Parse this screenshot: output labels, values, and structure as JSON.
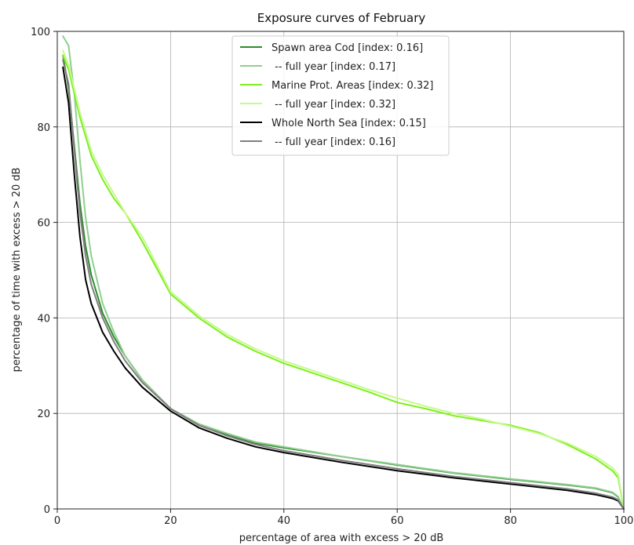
{
  "chart_data": {
    "type": "line",
    "title": "Exposure curves of February",
    "xlabel": "percentage of area with excess > 20 dB",
    "ylabel": "percentage of time with excess > 20 dB",
    "xlim": [
      0,
      100
    ],
    "ylim": [
      0,
      100
    ],
    "xticks": [
      "0",
      "20",
      "40",
      "60",
      "80",
      "100"
    ],
    "yticks": [
      "0",
      "20",
      "40",
      "60",
      "80",
      "100"
    ],
    "grid": true,
    "legend_position": "top-center",
    "series": [
      {
        "name": "Spawn area Cod [index: 0.16]",
        "color": "#2e8b2e",
        "x": [
          1,
          2,
          3,
          4,
          5,
          6,
          8,
          10,
          12,
          15,
          20,
          25,
          30,
          35,
          40,
          50,
          60,
          70,
          80,
          90,
          95,
          98,
          99,
          100
        ],
        "y": [
          95,
          88,
          76,
          64,
          55,
          49,
          41,
          36,
          32,
          27,
          21,
          17.5,
          15.5,
          13.8,
          12.8,
          11,
          9.2,
          7.5,
          6.2,
          5,
          4.3,
          3.4,
          2.5,
          0
        ]
      },
      {
        "name": " -- full year [index: 0.17]",
        "color": "#8fcf8f",
        "x": [
          1,
          2,
          3,
          4,
          5,
          6,
          8,
          10,
          12,
          15,
          20,
          25,
          30,
          35,
          40,
          50,
          60,
          70,
          80,
          90,
          95,
          98,
          99,
          100
        ],
        "y": [
          99,
          97,
          87,
          73,
          61,
          53,
          43,
          37,
          32,
          27,
          21,
          17.8,
          15.8,
          14,
          13,
          11,
          9.3,
          7.6,
          6.3,
          5.1,
          4.4,
          3.5,
          2.6,
          0
        ]
      },
      {
        "name": "Marine Prot. Areas [index: 0.32]",
        "color": "#7cf01a",
        "x": [
          1,
          2,
          3,
          4,
          5,
          6,
          8,
          10,
          12,
          15,
          20,
          25,
          30,
          35,
          40,
          45,
          50,
          55,
          60,
          65,
          70,
          75,
          80,
          85,
          90,
          95,
          98,
          99,
          100
        ],
        "y": [
          95,
          92,
          87,
          82,
          78,
          74,
          69,
          65,
          62,
          56,
          45,
          40,
          36,
          33,
          30.5,
          28.5,
          26.5,
          24.5,
          22.3,
          21,
          19.5,
          18.5,
          17.5,
          16,
          13.5,
          10.5,
          8,
          6.5,
          0
        ]
      },
      {
        "name": " -- full year [index: 0.32]",
        "color": "#c6f98e",
        "x": [
          1,
          2,
          3,
          4,
          5,
          6,
          8,
          10,
          12,
          15,
          20,
          25,
          30,
          35,
          40,
          45,
          50,
          55,
          60,
          65,
          70,
          75,
          80,
          85,
          90,
          95,
          98,
          99,
          100
        ],
        "y": [
          96,
          93,
          88,
          83,
          79,
          75,
          70,
          66,
          62,
          57,
          45.5,
          40.5,
          36.5,
          33.5,
          31,
          29,
          27,
          25,
          23.2,
          21.5,
          20,
          18.8,
          17.3,
          15.8,
          13.8,
          11,
          8.6,
          7.2,
          0
        ]
      },
      {
        "name": "Whole North Sea [index: 0.15]",
        "color": "#000000",
        "x": [
          1,
          2,
          3,
          4,
          5,
          6,
          8,
          10,
          12,
          15,
          20,
          25,
          30,
          35,
          40,
          50,
          60,
          70,
          80,
          90,
          95,
          98,
          99,
          100
        ],
        "y": [
          92.5,
          85,
          70,
          57,
          48,
          43,
          37,
          33,
          29.5,
          25.5,
          20.5,
          17,
          14.8,
          13,
          11.8,
          9.8,
          8,
          6.5,
          5.2,
          3.9,
          3,
          2.2,
          1.7,
          0
        ]
      },
      {
        "name": " -- full year [index: 0.16]",
        "color": "#7f7f7f",
        "x": [
          1,
          2,
          3,
          4,
          5,
          6,
          8,
          10,
          12,
          15,
          20,
          25,
          30,
          35,
          40,
          50,
          60,
          70,
          80,
          90,
          95,
          98,
          99,
          100
        ],
        "y": [
          94,
          89,
          75,
          62,
          53,
          47,
          40,
          35,
          31,
          26.5,
          21,
          17.5,
          15.3,
          13.5,
          12.2,
          10.2,
          8.4,
          6.8,
          5.5,
          4.2,
          3.3,
          2.5,
          1.9,
          0
        ]
      }
    ]
  }
}
